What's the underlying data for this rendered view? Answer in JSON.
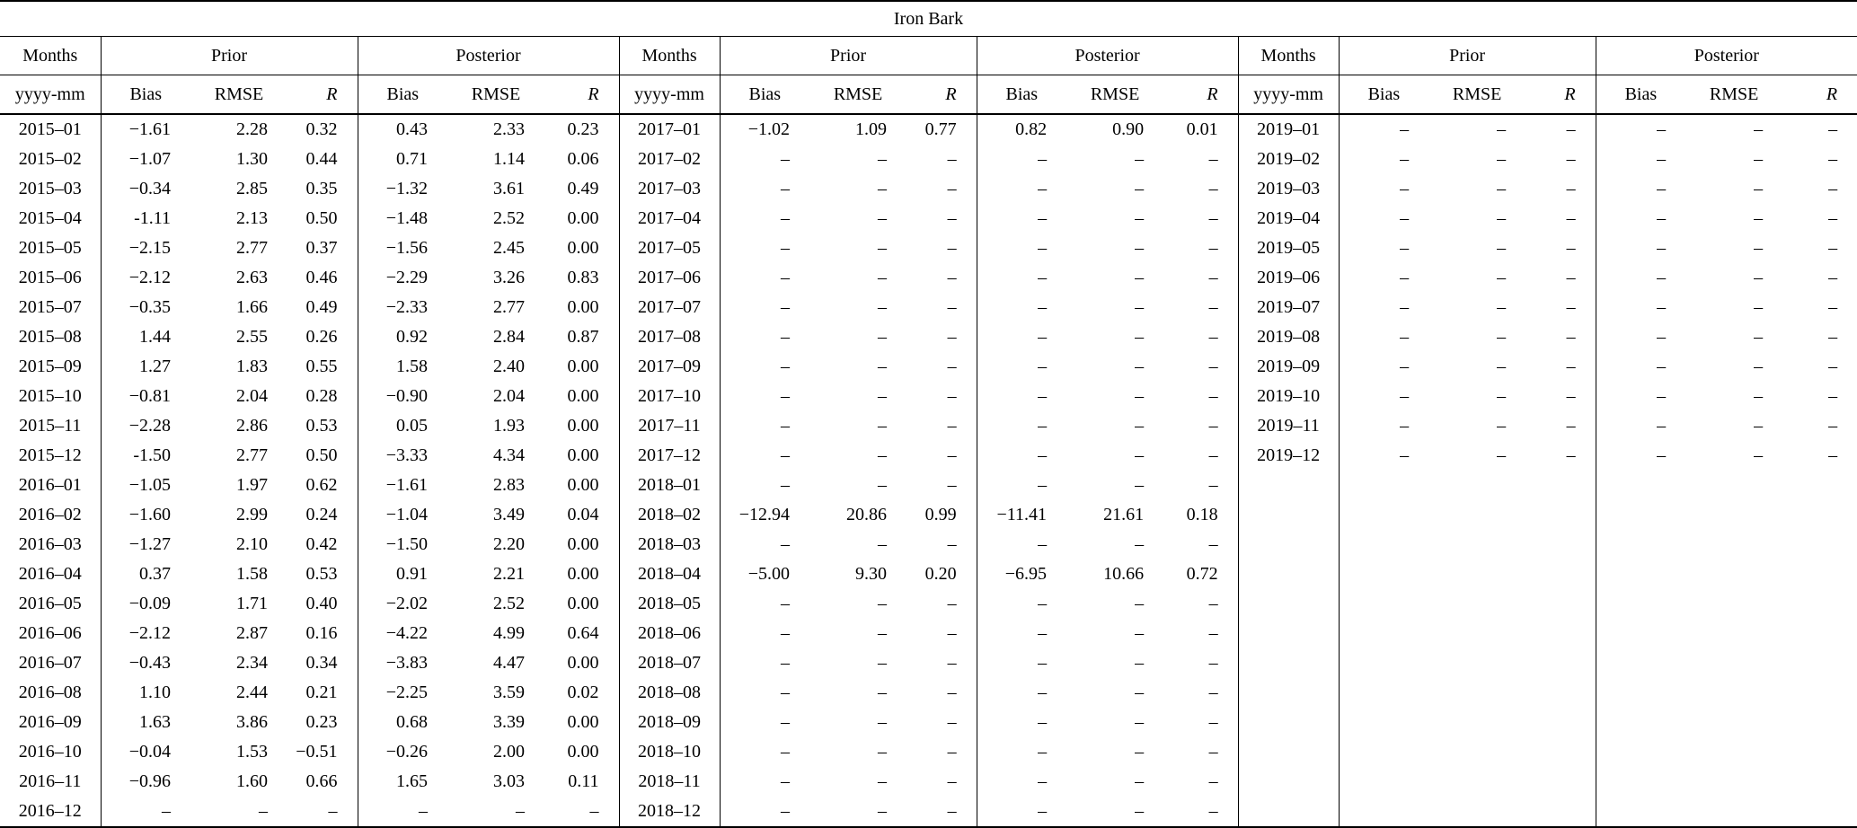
{
  "title": "Iron Bark",
  "header": {
    "months": "Months",
    "months_sub": "yyyy-mm",
    "prior": "Prior",
    "posterior": "Posterior",
    "bias": "Bias",
    "rmse": "RMSE",
    "r": "R"
  },
  "chart_data": {
    "type": "table",
    "title": "Iron Bark",
    "column_groups": [
      "Months",
      "Prior (Bias, RMSE, R)",
      "Posterior (Bias, RMSE, R)"
    ],
    "groups": [
      {
        "rows": [
          [
            "2015–01",
            "−1.61",
            "2.28",
            "0.32",
            "0.43",
            "2.33",
            "0.23"
          ],
          [
            "2015–02",
            "−1.07",
            "1.30",
            "0.44",
            "0.71",
            "1.14",
            "0.06"
          ],
          [
            "2015–03",
            "−0.34",
            "2.85",
            "0.35",
            "−1.32",
            "3.61",
            "0.49"
          ],
          [
            "2015–04",
            "-1.11",
            "2.13",
            "0.50",
            "−1.48",
            "2.52",
            "0.00"
          ],
          [
            "2015–05",
            "−2.15",
            "2.77",
            "0.37",
            "−1.56",
            "2.45",
            "0.00"
          ],
          [
            "2015–06",
            "−2.12",
            "2.63",
            "0.46",
            "−2.29",
            "3.26",
            "0.83"
          ],
          [
            "2015–07",
            "−0.35",
            "1.66",
            "0.49",
            "−2.33",
            "2.77",
            "0.00"
          ],
          [
            "2015–08",
            "1.44",
            "2.55",
            "0.26",
            "0.92",
            "2.84",
            "0.87"
          ],
          [
            "2015–09",
            "1.27",
            "1.83",
            "0.55",
            "1.58",
            "2.40",
            "0.00"
          ],
          [
            "2015–10",
            "−0.81",
            "2.04",
            "0.28",
            "−0.90",
            "2.04",
            "0.00"
          ],
          [
            "2015–11",
            "−2.28",
            "2.86",
            "0.53",
            "0.05",
            "1.93",
            "0.00"
          ],
          [
            "2015–12",
            "-1.50",
            "2.77",
            "0.50",
            "−3.33",
            "4.34",
            "0.00"
          ],
          [
            "2016–01",
            "−1.05",
            "1.97",
            "0.62",
            "−1.61",
            "2.83",
            "0.00"
          ],
          [
            "2016–02",
            "−1.60",
            "2.99",
            "0.24",
            "−1.04",
            "3.49",
            "0.04"
          ],
          [
            "2016–03",
            "−1.27",
            "2.10",
            "0.42",
            "−1.50",
            "2.20",
            "0.00"
          ],
          [
            "2016–04",
            "0.37",
            "1.58",
            "0.53",
            "0.91",
            "2.21",
            "0.00"
          ],
          [
            "2016–05",
            "−0.09",
            "1.71",
            "0.40",
            "−2.02",
            "2.52",
            "0.00"
          ],
          [
            "2016–06",
            "−2.12",
            "2.87",
            "0.16",
            "−4.22",
            "4.99",
            "0.64"
          ],
          [
            "2016–07",
            "−0.43",
            "2.34",
            "0.34",
            "−3.83",
            "4.47",
            "0.00"
          ],
          [
            "2016–08",
            "1.10",
            "2.44",
            "0.21",
            "−2.25",
            "3.59",
            "0.02"
          ],
          [
            "2016–09",
            "1.63",
            "3.86",
            "0.23",
            "0.68",
            "3.39",
            "0.00"
          ],
          [
            "2016–10",
            "−0.04",
            "1.53",
            "−0.51",
            "−0.26",
            "2.00",
            "0.00"
          ],
          [
            "2016–11",
            "−0.96",
            "1.60",
            "0.66",
            "1.65",
            "3.03",
            "0.11"
          ],
          [
            "2016–12",
            "–",
            "–",
            "–",
            "–",
            "–",
            "–"
          ]
        ]
      },
      {
        "rows": [
          [
            "2017–01",
            "−1.02",
            "1.09",
            "0.77",
            "0.82",
            "0.90",
            "0.01"
          ],
          [
            "2017–02",
            "–",
            "–",
            "–",
            "–",
            "–",
            "–"
          ],
          [
            "2017–03",
            "–",
            "–",
            "–",
            "–",
            "–",
            "–"
          ],
          [
            "2017–04",
            "–",
            "–",
            "–",
            "–",
            "–",
            "–"
          ],
          [
            "2017–05",
            "–",
            "–",
            "–",
            "–",
            "–",
            "–"
          ],
          [
            "2017–06",
            "–",
            "–",
            "–",
            "–",
            "–",
            "–"
          ],
          [
            "2017–07",
            "–",
            "–",
            "–",
            "–",
            "–",
            "–"
          ],
          [
            "2017–08",
            "–",
            "–",
            "–",
            "–",
            "–",
            "–"
          ],
          [
            "2017–09",
            "–",
            "–",
            "–",
            "–",
            "–",
            "–"
          ],
          [
            "2017–10",
            "–",
            "–",
            "–",
            "–",
            "–",
            "–"
          ],
          [
            "2017–11",
            "–",
            "–",
            "–",
            "–",
            "–",
            "–"
          ],
          [
            "2017–12",
            "–",
            "–",
            "–",
            "–",
            "–",
            "–"
          ],
          [
            "2018–01",
            "–",
            "–",
            "–",
            "–",
            "–",
            "–"
          ],
          [
            "2018–02",
            "−12.94",
            "20.86",
            "0.99",
            "−11.41",
            "21.61",
            "0.18"
          ],
          [
            "2018–03",
            "–",
            "–",
            "–",
            "–",
            "–",
            "–"
          ],
          [
            "2018–04",
            "−5.00",
            "9.30",
            "0.20",
            "−6.95",
            "10.66",
            "0.72"
          ],
          [
            "2018–05",
            "–",
            "–",
            "–",
            "–",
            "–",
            "–"
          ],
          [
            "2018–06",
            "–",
            "–",
            "–",
            "–",
            "–",
            "–"
          ],
          [
            "2018–07",
            "–",
            "–",
            "–",
            "–",
            "–",
            "–"
          ],
          [
            "2018–08",
            "–",
            "–",
            "–",
            "–",
            "–",
            "–"
          ],
          [
            "2018–09",
            "–",
            "–",
            "–",
            "–",
            "–",
            "–"
          ],
          [
            "2018–10",
            "–",
            "–",
            "–",
            "–",
            "–",
            "–"
          ],
          [
            "2018–11",
            "–",
            "–",
            "–",
            "–",
            "–",
            "–"
          ],
          [
            "2018–12",
            "–",
            "–",
            "–",
            "–",
            "–",
            "–"
          ]
        ]
      },
      {
        "rows": [
          [
            "2019–01",
            "–",
            "–",
            "–",
            "–",
            "–",
            "–"
          ],
          [
            "2019–02",
            "–",
            "–",
            "–",
            "–",
            "–",
            "–"
          ],
          [
            "2019–03",
            "–",
            "–",
            "–",
            "–",
            "–",
            "–"
          ],
          [
            "2019–04",
            "–",
            "–",
            "–",
            "–",
            "–",
            "–"
          ],
          [
            "2019–05",
            "–",
            "–",
            "–",
            "–",
            "–",
            "–"
          ],
          [
            "2019–06",
            "–",
            "–",
            "–",
            "–",
            "–",
            "–"
          ],
          [
            "2019–07",
            "–",
            "–",
            "–",
            "–",
            "–",
            "–"
          ],
          [
            "2019–08",
            "–",
            "–",
            "–",
            "–",
            "–",
            "–"
          ],
          [
            "2019–09",
            "–",
            "–",
            "–",
            "–",
            "–",
            "–"
          ],
          [
            "2019–10",
            "–",
            "–",
            "–",
            "–",
            "–",
            "–"
          ],
          [
            "2019–11",
            "–",
            "–",
            "–",
            "–",
            "–",
            "–"
          ],
          [
            "2019–12",
            "–",
            "–",
            "–",
            "–",
            "–",
            "–"
          ]
        ]
      }
    ]
  }
}
